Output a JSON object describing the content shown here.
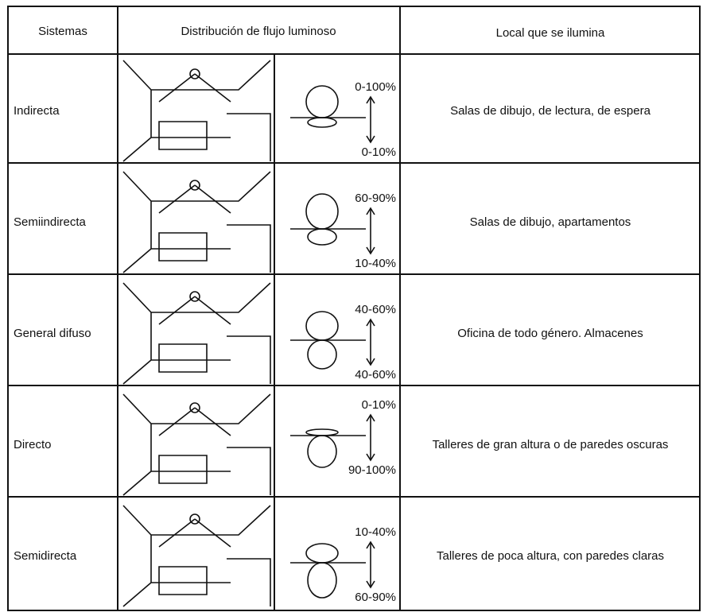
{
  "header": [
    "Sistemas",
    "Distribución de flujo luminoso",
    "Local que se ilumina"
  ],
  "rows": [
    {
      "system": "Indirecta",
      "up": "0-100%",
      "down": "0-10%",
      "local": "Salas de dibujo, de lectura, de espera"
    },
    {
      "system": "Semiindirecta",
      "up": "60-90%",
      "down": "10-40%",
      "local": "Salas de dibujo, apartamentos"
    },
    {
      "system": "General difuso",
      "up": "40-60%",
      "down": "40-60%",
      "local": "Oficina de todo género. Almacenes"
    },
    {
      "system": "Directo",
      "up": "0-10%",
      "down": "90-100%",
      "local": "Talleres de gran altura o de paredes oscuras"
    },
    {
      "system": "Semidirecta",
      "up": "10-40%",
      "down": "60-90%",
      "local": "Talleres de poca altura, con paredes claras"
    }
  ]
}
